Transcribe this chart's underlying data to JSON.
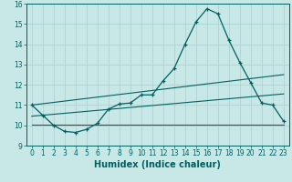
{
  "title": "",
  "xlabel": "Humidex (Indice chaleur)",
  "xlim": [
    -0.5,
    23.5
  ],
  "ylim": [
    9,
    16
  ],
  "xticks": [
    0,
    1,
    2,
    3,
    4,
    5,
    6,
    7,
    8,
    9,
    10,
    11,
    12,
    13,
    14,
    15,
    16,
    17,
    18,
    19,
    20,
    21,
    22,
    23
  ],
  "yticks": [
    9,
    10,
    11,
    12,
    13,
    14,
    15,
    16
  ],
  "bg_color": "#c8e8e8",
  "grid_color": "#aad4d4",
  "line_color": "#006060",
  "line1_x": [
    0,
    1,
    2,
    3,
    4,
    5,
    6,
    7,
    8,
    9,
    10,
    11,
    12,
    13,
    14,
    15,
    16,
    17,
    18,
    19,
    20,
    21,
    22,
    23
  ],
  "line1_y": [
    11.0,
    10.5,
    10.0,
    9.7,
    9.65,
    9.8,
    10.1,
    10.8,
    11.05,
    11.1,
    11.5,
    11.5,
    12.2,
    12.8,
    14.0,
    15.1,
    15.75,
    15.5,
    14.2,
    13.1,
    12.1,
    11.1,
    11.0,
    10.2
  ],
  "line2_x": [
    0,
    23
  ],
  "line2_y": [
    11.0,
    12.5
  ],
  "line3_x": [
    0,
    23
  ],
  "line3_y": [
    10.45,
    11.55
  ],
  "line4_x": [
    0,
    23
  ],
  "line4_y": [
    10.05,
    10.05
  ],
  "line4_color": "#aa2222",
  "tick_fontsize": 5.5,
  "xlabel_fontsize": 7
}
